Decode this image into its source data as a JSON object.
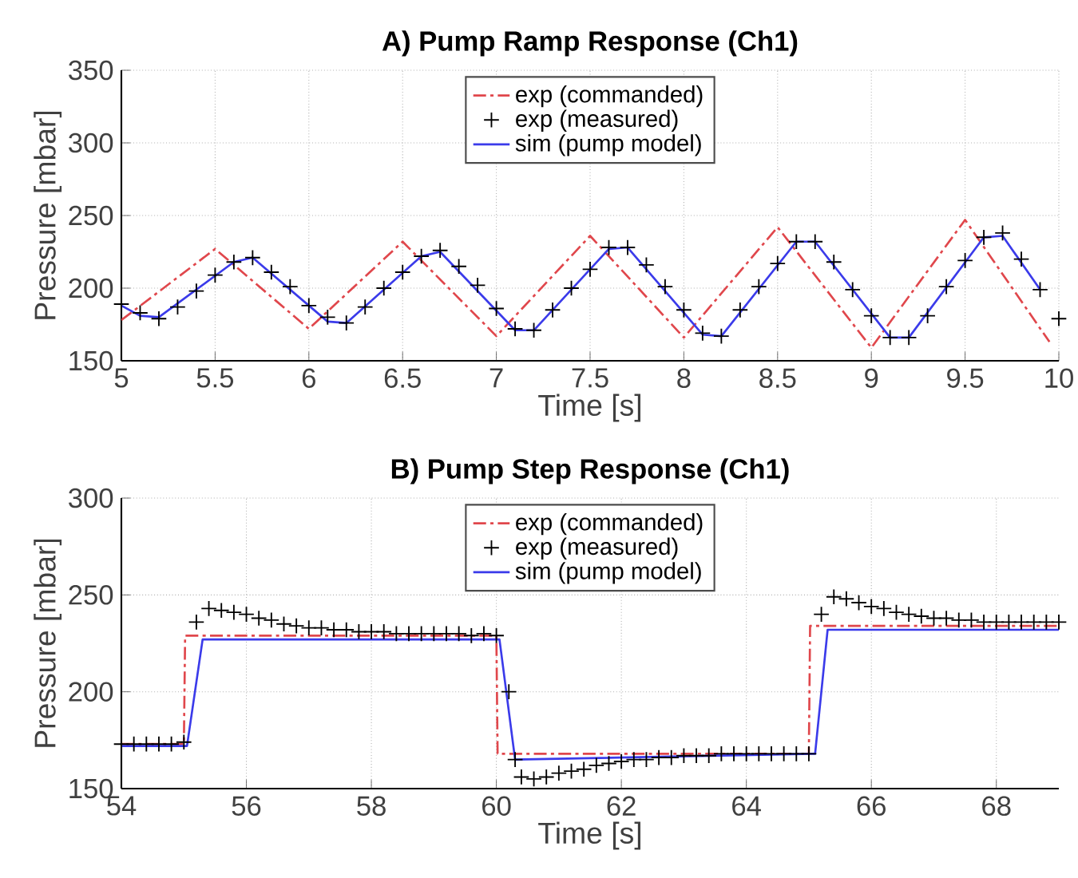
{
  "chart_data": [
    {
      "type": "line",
      "title": "A) Pump Ramp Response (Ch1)",
      "xlabel": "Time [s]",
      "ylabel": "Pressure [mbar]",
      "xlim": [
        5,
        10
      ],
      "ylim": [
        150,
        350
      ],
      "xticks": [
        5,
        5.5,
        6,
        6.5,
        7,
        7.5,
        8,
        8.5,
        9,
        9.5,
        10
      ],
      "yticks": [
        150,
        200,
        250,
        300,
        350
      ],
      "grid": true,
      "legend": "top",
      "series": [
        {
          "name": "exp (commanded)",
          "line_style": "dashed",
          "color": "#e0474c",
          "x": [
            5,
            5.5,
            6,
            6.5,
            7,
            7.5,
            8,
            8.5,
            9,
            9.5,
            9.95
          ],
          "values": [
            178,
            227,
            172,
            232,
            167,
            236,
            166,
            242,
            159,
            247,
            163
          ]
        },
        {
          "name": "exp (measured)",
          "type": "scatter",
          "marker": "cross",
          "color": "#000000",
          "x": [
            5,
            5.1,
            5.2,
            5.3,
            5.4,
            5.5,
            5.6,
            5.7,
            5.8,
            5.9,
            6,
            6.1,
            6.2,
            6.3,
            6.4,
            6.5,
            6.6,
            6.7,
            6.8,
            6.9,
            7,
            7.1,
            7.2,
            7.3,
            7.4,
            7.5,
            7.6,
            7.7,
            7.8,
            7.9,
            8,
            8.1,
            8.2,
            8.3,
            8.4,
            8.5,
            8.6,
            8.7,
            8.8,
            8.9,
            9,
            9.1,
            9.2,
            9.3,
            9.4,
            9.5,
            9.6,
            9.7,
            9.8,
            9.9,
            10
          ],
          "values": [
            189,
            183,
            179,
            187,
            198,
            209,
            218,
            221,
            211,
            201,
            188,
            180,
            176,
            187,
            200,
            211,
            222,
            226,
            215,
            202,
            186,
            172,
            171,
            185,
            200,
            213,
            228,
            228,
            216,
            201,
            185,
            169,
            167,
            185,
            201,
            217,
            232,
            232,
            218,
            199,
            181,
            166,
            166,
            181,
            201,
            219,
            235,
            238,
            220,
            199,
            179
          ]
        },
        {
          "name": "sim (pump model)",
          "line_style": "solid",
          "color": "#3b3bea",
          "x": [
            5,
            5.1,
            5.2,
            5.6,
            5.7,
            6.1,
            6.2,
            6.6,
            6.7,
            7.1,
            7.2,
            7.6,
            7.7,
            8.1,
            8.2,
            8.6,
            8.7,
            9.1,
            9.2,
            9.6,
            9.7,
            9.9
          ],
          "values": [
            188,
            181,
            180,
            218,
            221,
            177,
            176,
            222,
            225,
            171,
            171,
            227,
            228,
            168,
            167,
            232,
            232,
            166,
            166,
            235,
            236,
            199
          ]
        }
      ]
    },
    {
      "type": "line",
      "title": "B) Pump Step Response (Ch1)",
      "xlabel": "Time [s]",
      "ylabel": "Pressure [mbar]",
      "xlim": [
        54,
        69
      ],
      "ylim": [
        150,
        300
      ],
      "xticks": [
        54,
        56,
        58,
        60,
        62,
        64,
        66,
        68
      ],
      "yticks": [
        150,
        200,
        250,
        300
      ],
      "grid": true,
      "legend": "top",
      "series": [
        {
          "name": "exp (commanded)",
          "line_style": "dashed",
          "color": "#e0474c",
          "x": [
            54,
            55,
            55.02,
            60,
            60.02,
            65,
            65.02,
            69
          ],
          "values": [
            173,
            173,
            229,
            229,
            168,
            168,
            234,
            234
          ]
        },
        {
          "name": "exp (measured)",
          "type": "scatter",
          "marker": "cross",
          "color": "#000000",
          "x": [
            54,
            54.2,
            54.4,
            54.6,
            54.8,
            55,
            55.2,
            55.4,
            55.6,
            55.8,
            56,
            56.2,
            56.4,
            56.6,
            56.8,
            57,
            57.2,
            57.4,
            57.6,
            57.8,
            58,
            58.2,
            58.4,
            58.6,
            58.8,
            59,
            59.2,
            59.4,
            59.6,
            59.8,
            60,
            60.2,
            60.3,
            60.4,
            60.6,
            60.8,
            61,
            61.2,
            61.4,
            61.6,
            61.8,
            62,
            62.2,
            62.4,
            62.6,
            62.8,
            63,
            63.2,
            63.4,
            63.6,
            63.8,
            64,
            64.2,
            64.4,
            64.6,
            64.8,
            65,
            65.2,
            65.4,
            65.6,
            65.8,
            66,
            66.2,
            66.4,
            66.6,
            66.8,
            67,
            67.2,
            67.4,
            67.6,
            67.8,
            68,
            68.2,
            68.4,
            68.6,
            68.8,
            69
          ],
          "values": [
            173,
            173,
            173,
            173,
            173,
            174,
            236,
            243,
            242,
            241,
            240,
            238,
            237,
            235,
            234,
            233,
            233,
            232,
            232,
            231,
            231,
            231,
            230,
            230,
            230,
            230,
            230,
            230,
            229,
            230,
            229,
            200,
            165,
            156,
            155,
            156,
            158,
            159,
            160,
            162,
            163,
            164,
            165,
            165,
            166,
            166,
            167,
            167,
            167,
            168,
            168,
            168,
            168,
            168,
            168,
            168,
            168,
            240,
            249,
            248,
            246,
            244,
            243,
            241,
            240,
            239,
            238,
            238,
            237,
            237,
            236,
            236,
            236,
            236,
            236,
            236,
            236
          ]
        },
        {
          "name": "sim (pump model)",
          "line_style": "solid",
          "color": "#3b3bea",
          "x": [
            54,
            55.05,
            55.3,
            60.05,
            60.3,
            65.1,
            65.3,
            69
          ],
          "values": [
            172,
            172,
            227,
            227,
            165,
            168,
            232,
            232
          ]
        }
      ]
    }
  ]
}
